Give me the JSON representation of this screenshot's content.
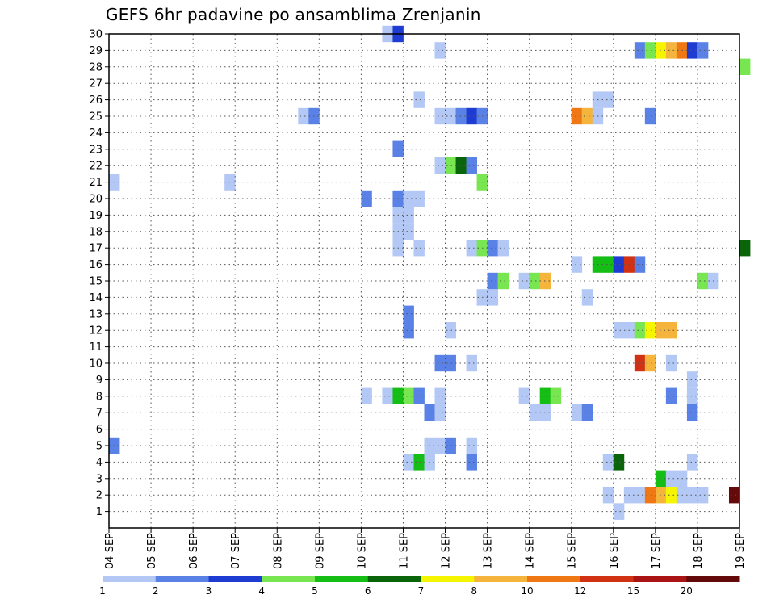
{
  "chart_data": {
    "type": "heatmap",
    "title": "GEFS 6hr padavine po ansamblima Zrenjanin",
    "xlabel": "",
    "ylabel": "",
    "x_tick_labels": [
      "04 SEP",
      "05 SEP",
      "06 SEP",
      "07 SEP",
      "08 SEP",
      "09 SEP",
      "10 SEP",
      "11 SEP",
      "12 SEP",
      "13 SEP",
      "14 SEP",
      "15 SEP",
      "16 SEP",
      "17 SEP",
      "18 SEP",
      "19 SEP"
    ],
    "x_range_days": [
      0,
      15
    ],
    "y_tick_labels": [
      "1",
      "2",
      "3",
      "4",
      "5",
      "6",
      "7",
      "8",
      "9",
      "10",
      "11",
      "12",
      "13",
      "14",
      "15",
      "16",
      "17",
      "18",
      "19",
      "20",
      "21",
      "22",
      "23",
      "24",
      "25",
      "26",
      "27",
      "28",
      "29",
      "30"
    ],
    "y_range": [
      0,
      30
    ],
    "grid": true,
    "colorbar": {
      "labels": [
        "1",
        "2",
        "3",
        "4",
        "5",
        "6",
        "7",
        "8",
        "10",
        "12",
        "15",
        "20"
      ],
      "colors": [
        "#b4c8f5",
        "#5a82e6",
        "#1e3cd2",
        "#78e650",
        "#14be14",
        "#0a640a",
        "#f5f500",
        "#f5b43c",
        "#f07814",
        "#d23214",
        "#aa1414",
        "#640a0a"
      ]
    },
    "bin_hours": 6,
    "cells": [
      {
        "member": 1,
        "day": 12.0,
        "level": 1
      },
      {
        "member": 1,
        "day": 12.0,
        "level": 1
      },
      {
        "member": 2,
        "day": 11.75,
        "level": 1
      },
      {
        "member": 2,
        "day": 12.25,
        "level": 1
      },
      {
        "member": 2,
        "day": 12.5,
        "level": 1
      },
      {
        "member": 2,
        "day": 13.75,
        "level": 1
      },
      {
        "member": 2,
        "day": 14.0,
        "level": 1
      },
      {
        "member": 2,
        "day": 12.75,
        "level": 9
      },
      {
        "member": 2,
        "day": 13.0,
        "level": 8
      },
      {
        "member": 2,
        "day": 13.25,
        "level": 7
      },
      {
        "member": 2,
        "day": 13.5,
        "level": 1
      },
      {
        "member": 2,
        "day": 14.75,
        "level": 12
      },
      {
        "member": 3,
        "day": 13.0,
        "level": 5
      },
      {
        "member": 3,
        "day": 13.25,
        "level": 1
      },
      {
        "member": 3,
        "day": 13.5,
        "level": 1
      },
      {
        "member": 4,
        "day": 7.0,
        "level": 1
      },
      {
        "member": 4,
        "day": 7.25,
        "level": 5
      },
      {
        "member": 4,
        "day": 7.5,
        "level": 1
      },
      {
        "member": 4,
        "day": 8.5,
        "level": 2
      },
      {
        "member": 4,
        "day": 11.75,
        "level": 1
      },
      {
        "member": 4,
        "day": 12.0,
        "level": 6
      },
      {
        "member": 4,
        "day": 13.75,
        "level": 1
      },
      {
        "member": 5,
        "day": 0.0,
        "level": 2
      },
      {
        "member": 5,
        "day": 7.5,
        "level": 1
      },
      {
        "member": 5,
        "day": 7.75,
        "level": 1
      },
      {
        "member": 5,
        "day": 8.0,
        "level": 2
      },
      {
        "member": 5,
        "day": 8.5,
        "level": 1
      },
      {
        "member": 7,
        "day": 7.5,
        "level": 2
      },
      {
        "member": 7,
        "day": 7.75,
        "level": 1
      },
      {
        "member": 7,
        "day": 10.0,
        "level": 1
      },
      {
        "member": 7,
        "day": 10.25,
        "level": 1
      },
      {
        "member": 7,
        "day": 11.0,
        "level": 1
      },
      {
        "member": 7,
        "day": 11.25,
        "level": 2
      },
      {
        "member": 7,
        "day": 13.75,
        "level": 2
      },
      {
        "member": 8,
        "day": 6.0,
        "level": 1
      },
      {
        "member": 8,
        "day": 6.5,
        "level": 1
      },
      {
        "member": 8,
        "day": 6.75,
        "level": 5
      },
      {
        "member": 8,
        "day": 7.0,
        "level": 4
      },
      {
        "member": 8,
        "day": 7.25,
        "level": 2
      },
      {
        "member": 8,
        "day": 7.75,
        "level": 1
      },
      {
        "member": 8,
        "day": 9.75,
        "level": 1
      },
      {
        "member": 8,
        "day": 10.25,
        "level": 5
      },
      {
        "member": 8,
        "day": 10.5,
        "level": 4
      },
      {
        "member": 8,
        "day": 13.25,
        "level": 2
      },
      {
        "member": 8,
        "day": 13.75,
        "level": 1
      },
      {
        "member": 9,
        "day": 13.75,
        "level": 1
      },
      {
        "member": 10,
        "day": 7.75,
        "level": 2
      },
      {
        "member": 10,
        "day": 8.0,
        "level": 2
      },
      {
        "member": 10,
        "day": 8.5,
        "level": 1
      },
      {
        "member": 10,
        "day": 12.5,
        "level": 10
      },
      {
        "member": 10,
        "day": 12.75,
        "level": 8
      },
      {
        "member": 10,
        "day": 13.25,
        "level": 1
      },
      {
        "member": 12,
        "day": 7.0,
        "level": 2
      },
      {
        "member": 12,
        "day": 8.0,
        "level": 1
      },
      {
        "member": 12,
        "day": 12.0,
        "level": 1
      },
      {
        "member": 12,
        "day": 12.25,
        "level": 1
      },
      {
        "member": 12,
        "day": 12.5,
        "level": 4
      },
      {
        "member": 12,
        "day": 12.75,
        "level": 7
      },
      {
        "member": 12,
        "day": 13.0,
        "level": 8
      },
      {
        "member": 12,
        "day": 13.25,
        "level": 8
      },
      {
        "member": 13,
        "day": 7.0,
        "level": 2
      },
      {
        "member": 14,
        "day": 8.75,
        "level": 1
      },
      {
        "member": 14,
        "day": 9.0,
        "level": 1
      },
      {
        "member": 14,
        "day": 11.25,
        "level": 1
      },
      {
        "member": 15,
        "day": 9.0,
        "level": 2
      },
      {
        "member": 15,
        "day": 9.25,
        "level": 4
      },
      {
        "member": 15,
        "day": 9.75,
        "level": 1
      },
      {
        "member": 15,
        "day": 10.0,
        "level": 4
      },
      {
        "member": 15,
        "day": 10.25,
        "level": 8
      },
      {
        "member": 15,
        "day": 14.0,
        "level": 4
      },
      {
        "member": 15,
        "day": 14.25,
        "level": 1
      },
      {
        "member": 16,
        "day": 11.0,
        "level": 1
      },
      {
        "member": 16,
        "day": 11.5,
        "level": 5
      },
      {
        "member": 16,
        "day": 11.75,
        "level": 5
      },
      {
        "member": 16,
        "day": 12.0,
        "level": 3
      },
      {
        "member": 16,
        "day": 12.25,
        "level": 10
      },
      {
        "member": 16,
        "day": 12.5,
        "level": 2
      },
      {
        "member": 17,
        "day": 6.75,
        "level": 1
      },
      {
        "member": 17,
        "day": 7.25,
        "level": 1
      },
      {
        "member": 17,
        "day": 8.5,
        "level": 1
      },
      {
        "member": 17,
        "day": 8.75,
        "level": 4
      },
      {
        "member": 17,
        "day": 9.0,
        "level": 2
      },
      {
        "member": 17,
        "day": 9.25,
        "level": 1
      },
      {
        "member": 17,
        "day": 15.0,
        "level": 6
      },
      {
        "member": 18,
        "day": 6.75,
        "level": 1
      },
      {
        "member": 18,
        "day": 7.0,
        "level": 1
      },
      {
        "member": 19,
        "day": 6.75,
        "level": 1
      },
      {
        "member": 19,
        "day": 7.0,
        "level": 1
      },
      {
        "member": 20,
        "day": 6.0,
        "level": 2
      },
      {
        "member": 20,
        "day": 6.75,
        "level": 2
      },
      {
        "member": 20,
        "day": 7.0,
        "level": 1
      },
      {
        "member": 20,
        "day": 7.25,
        "level": 1
      },
      {
        "member": 21,
        "day": 0.0,
        "level": 1
      },
      {
        "member": 21,
        "day": 2.75,
        "level": 1
      },
      {
        "member": 21,
        "day": 8.75,
        "level": 4
      },
      {
        "member": 22,
        "day": 7.75,
        "level": 1
      },
      {
        "member": 22,
        "day": 8.0,
        "level": 4
      },
      {
        "member": 22,
        "day": 8.25,
        "level": 6
      },
      {
        "member": 22,
        "day": 8.5,
        "level": 2
      },
      {
        "member": 23,
        "day": 6.75,
        "level": 2
      },
      {
        "member": 24,
        "day": 0.0,
        "level": 0
      },
      {
        "member": 25,
        "day": 4.5,
        "level": 1
      },
      {
        "member": 25,
        "day": 4.75,
        "level": 2
      },
      {
        "member": 25,
        "day": 7.75,
        "level": 1
      },
      {
        "member": 25,
        "day": 8.0,
        "level": 1
      },
      {
        "member": 25,
        "day": 8.25,
        "level": 2
      },
      {
        "member": 25,
        "day": 8.5,
        "level": 3
      },
      {
        "member": 25,
        "day": 8.75,
        "level": 2
      },
      {
        "member": 25,
        "day": 11.0,
        "level": 9
      },
      {
        "member": 25,
        "day": 11.25,
        "level": 8
      },
      {
        "member": 25,
        "day": 11.5,
        "level": 1
      },
      {
        "member": 25,
        "day": 12.75,
        "level": 2
      },
      {
        "member": 26,
        "day": 7.25,
        "level": 1
      },
      {
        "member": 26,
        "day": 11.5,
        "level": 1
      },
      {
        "member": 26,
        "day": 11.75,
        "level": 1
      },
      {
        "member": 28,
        "day": 15.0,
        "level": 4
      },
      {
        "member": 29,
        "day": 7.75,
        "level": 1
      },
      {
        "member": 29,
        "day": 12.5,
        "level": 2
      },
      {
        "member": 29,
        "day": 12.75,
        "level": 4
      },
      {
        "member": 29,
        "day": 13.0,
        "level": 7
      },
      {
        "member": 29,
        "day": 13.25,
        "level": 8
      },
      {
        "member": 29,
        "day": 13.5,
        "level": 9
      },
      {
        "member": 29,
        "day": 13.75,
        "level": 3
      },
      {
        "member": 29,
        "day": 14.0,
        "level": 2
      },
      {
        "member": 30,
        "day": 6.5,
        "level": 1
      },
      {
        "member": 30,
        "day": 6.75,
        "level": 3
      }
    ]
  }
}
